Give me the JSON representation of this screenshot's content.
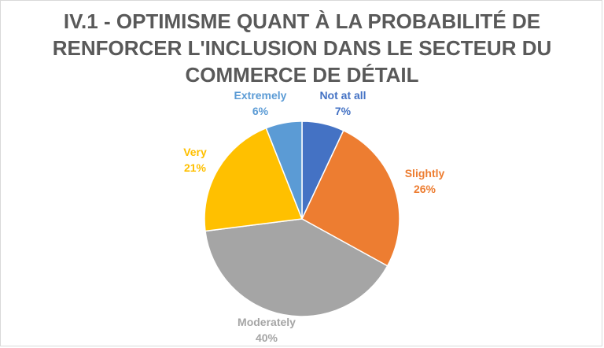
{
  "chart_data": {
    "type": "pie",
    "title_lines": [
      "IV.1 - OPTIMISME QUANT À LA PROBABILITÉ DE",
      "RENFORCER L'INCLUSION DANS LE SECTEUR DU",
      "COMMERCE DE DÉTAIL"
    ],
    "slices": [
      {
        "label": "Not at all",
        "value": 7,
        "pct_label": "7%",
        "color": "#4472C4"
      },
      {
        "label": "Slightly",
        "value": 26,
        "pct_label": "26%",
        "color": "#ED7D31"
      },
      {
        "label": "Moderately",
        "value": 40,
        "pct_label": "40%",
        "color": "#A5A5A5"
      },
      {
        "label": "Very",
        "value": 21,
        "pct_label": "21%",
        "color": "#FFC000"
      },
      {
        "label": "Extremely",
        "value": 6,
        "pct_label": "6%",
        "color": "#5B9BD5"
      }
    ],
    "start_angle_deg": 0,
    "direction": "clockwise",
    "legend": "none",
    "data_labels": "outside"
  }
}
